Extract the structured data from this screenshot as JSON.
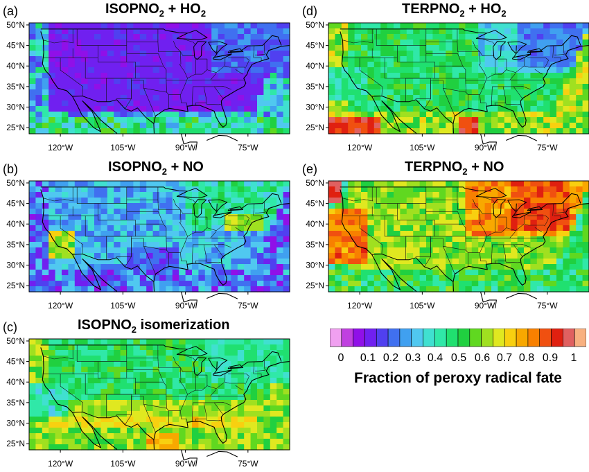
{
  "panels": [
    {
      "id": "a",
      "letter": "(a)",
      "title_pre": "ISOPNO",
      "title_sub": "2",
      "title_post": " + HO",
      "title_sub2": "2",
      "palette": "isop_ho2"
    },
    {
      "id": "b",
      "letter": "(b)",
      "title_pre": "ISOPNO",
      "title_sub": "2",
      "title_post": " + NO",
      "title_sub2": "",
      "palette": "isop_no"
    },
    {
      "id": "c",
      "letter": "(c)",
      "title_pre": "ISOPNO",
      "title_sub": "2",
      "title_post": " isomerization",
      "title_sub2": "",
      "palette": "isom"
    },
    {
      "id": "d",
      "letter": "(d)",
      "title_pre": "TERPNO",
      "title_sub": "2",
      "title_post": " + HO",
      "title_sub2": "2",
      "palette": "terp_ho2"
    },
    {
      "id": "e",
      "letter": "(e)",
      "title_pre": "TERPNO",
      "title_sub": "2",
      "title_post": " + NO",
      "title_sub2": "",
      "palette": "terp_no"
    }
  ],
  "axes": {
    "lat_labels": [
      "50°N",
      "45°N",
      "40°N",
      "35°N",
      "30°N",
      "25°N"
    ],
    "lon_labels": [
      "120°W",
      "105°W",
      "90°W",
      "75°W"
    ]
  },
  "colorbar": {
    "colors": [
      "#f0a0f0",
      "#c040e0",
      "#9010e8",
      "#7020f0",
      "#5040f0",
      "#4070f0",
      "#40a0f0",
      "#50c8f0",
      "#40e0d0",
      "#30e8a8",
      "#20e070",
      "#20d040",
      "#60d820",
      "#a0e020",
      "#e0e820",
      "#f8d010",
      "#f8a800",
      "#f88000",
      "#f05010",
      "#e02010",
      "#e06060",
      "#f8b080"
    ],
    "tick_labels": [
      "0",
      "0.1",
      "0.2",
      "0.3",
      "0.4",
      "0.5",
      "0.6",
      "0.7",
      "0.8",
      "0.9",
      "1"
    ],
    "label": "Fraction of peroxy radical fate"
  }
}
